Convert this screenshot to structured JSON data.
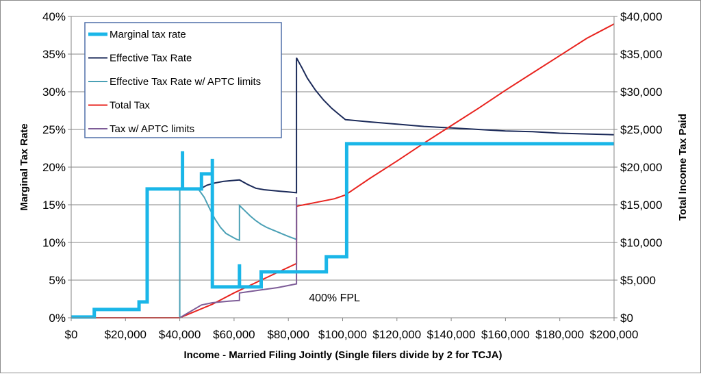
{
  "chart_data": {
    "type": "line",
    "xlabel": "Income - Married Filing Jointly (Single filers divide by 2 for TCJA)",
    "ylabel_left": "Marginal Tax Rate",
    "ylabel_right": "Total Income Tax Paid",
    "xlim": [
      0,
      200000
    ],
    "ylim_left": [
      0,
      0.4
    ],
    "ylim_right": [
      0,
      40000
    ],
    "x_ticks": [
      {
        "value": 0,
        "label": "$0"
      },
      {
        "value": 20000,
        "label": "$20,000"
      },
      {
        "value": 40000,
        "label": "$40,000"
      },
      {
        "value": 60000,
        "label": "$60,000"
      },
      {
        "value": 80000,
        "label": "$80,000"
      },
      {
        "value": 100000,
        "label": "$100,000"
      },
      {
        "value": 120000,
        "label": "$120,000"
      },
      {
        "value": 140000,
        "label": "$140,000"
      },
      {
        "value": 160000,
        "label": "$160,000"
      },
      {
        "value": 180000,
        "label": "$180,000"
      },
      {
        "value": 200000,
        "label": "$200,000"
      }
    ],
    "y_left_ticks": [
      {
        "value": 0,
        "label": "0%"
      },
      {
        "value": 0.05,
        "label": "5%"
      },
      {
        "value": 0.1,
        "label": "10%"
      },
      {
        "value": 0.15,
        "label": "15%"
      },
      {
        "value": 0.2,
        "label": "20%"
      },
      {
        "value": 0.25,
        "label": "25%"
      },
      {
        "value": 0.3,
        "label": "30%"
      },
      {
        "value": 0.35,
        "label": "35%"
      },
      {
        "value": 0.4,
        "label": "40%"
      }
    ],
    "y_right_ticks": [
      {
        "value": 0,
        "label": "$0"
      },
      {
        "value": 5000,
        "label": "$5,000"
      },
      {
        "value": 10000,
        "label": "$10,000"
      },
      {
        "value": 15000,
        "label": "$15,000"
      },
      {
        "value": 20000,
        "label": "$20,000"
      },
      {
        "value": 25000,
        "label": "$25,000"
      },
      {
        "value": 30000,
        "label": "$30,000"
      },
      {
        "value": 35000,
        "label": "$35,000"
      },
      {
        "value": 40000,
        "label": "$40,000"
      }
    ],
    "grid": "horizontal",
    "legend_placement": "top-left",
    "annotations": [
      {
        "text": "400% FPL",
        "x": 97000,
        "y": 0.022
      }
    ],
    "series": [
      {
        "name": "Effective Tax Rate w/ APTC limits",
        "axis": "left",
        "color": "#4aa0b5",
        "width": 2,
        "points": [
          [
            40000,
            0
          ],
          [
            40000,
            0.17
          ],
          [
            47000,
            0.17
          ],
          [
            49000,
            0.16
          ],
          [
            51000,
            0.145
          ],
          [
            53000,
            0.131
          ],
          [
            55000,
            0.12
          ],
          [
            57000,
            0.112
          ],
          [
            59000,
            0.108
          ],
          [
            61000,
            0.104
          ],
          [
            62000,
            0.103
          ],
          [
            62000,
            0.149
          ],
          [
            64000,
            0.142
          ],
          [
            66000,
            0.135
          ],
          [
            68000,
            0.129
          ],
          [
            70000,
            0.124
          ],
          [
            72000,
            0.12
          ],
          [
            74000,
            0.117
          ],
          [
            76000,
            0.114
          ],
          [
            78000,
            0.111
          ],
          [
            80000,
            0.108
          ],
          [
            83000,
            0.104
          ],
          [
            83000,
            0.16
          ]
        ]
      },
      {
        "name": "Effective Tax Rate",
        "axis": "left",
        "color": "#1b2a59",
        "width": 2,
        "points": [
          [
            47000,
            0.17
          ],
          [
            50000,
            0.176
          ],
          [
            53000,
            0.179
          ],
          [
            56000,
            0.181
          ],
          [
            59000,
            0.182
          ],
          [
            62000,
            0.183
          ],
          [
            65000,
            0.177
          ],
          [
            68000,
            0.172
          ],
          [
            71000,
            0.17
          ],
          [
            74000,
            0.169
          ],
          [
            77000,
            0.168
          ],
          [
            80000,
            0.167
          ],
          [
            83000,
            0.166
          ],
          [
            83000,
            0.345
          ],
          [
            85000,
            0.332
          ],
          [
            87000,
            0.318
          ],
          [
            90000,
            0.302
          ],
          [
            93000,
            0.289
          ],
          [
            96000,
            0.278
          ],
          [
            99000,
            0.269
          ],
          [
            101000,
            0.263
          ],
          [
            110000,
            0.26
          ],
          [
            120000,
            0.257
          ],
          [
            130000,
            0.254
          ],
          [
            140000,
            0.252
          ],
          [
            150000,
            0.25
          ],
          [
            160000,
            0.248
          ],
          [
            170000,
            0.247
          ],
          [
            180000,
            0.245
          ],
          [
            190000,
            0.244
          ],
          [
            200000,
            0.243
          ]
        ]
      },
      {
        "name": "Total Tax",
        "axis": "right",
        "color": "#e8231e",
        "width": 2,
        "points": [
          [
            0,
            0
          ],
          [
            40000,
            0
          ],
          [
            52000,
            1800
          ],
          [
            60000,
            3300
          ],
          [
            70000,
            5000
          ],
          [
            83000,
            7200
          ],
          [
            83000,
            14800
          ],
          [
            90000,
            15300
          ],
          [
            97000,
            15800
          ],
          [
            101000,
            16300
          ],
          [
            110000,
            18500
          ],
          [
            120000,
            20800
          ],
          [
            130000,
            23200
          ],
          [
            140000,
            25500
          ],
          [
            150000,
            27800
          ],
          [
            160000,
            30200
          ],
          [
            170000,
            32500
          ],
          [
            180000,
            34800
          ],
          [
            190000,
            37100
          ],
          [
            200000,
            39000
          ]
        ]
      },
      {
        "name": "Tax w/ APTC limits",
        "axis": "right",
        "color": "#7d5c97",
        "width": 2,
        "points": [
          [
            40000,
            0
          ],
          [
            48000,
            1700
          ],
          [
            52000,
            2000
          ],
          [
            58000,
            2200
          ],
          [
            62000,
            2300
          ],
          [
            62000,
            3300
          ],
          [
            70000,
            3700
          ],
          [
            76000,
            4000
          ],
          [
            83000,
            4500
          ],
          [
            83000,
            16000
          ]
        ]
      },
      {
        "name": "Marginal tax rate",
        "axis": "left",
        "color": "#1ab6e8",
        "width": 5,
        "points": [
          [
            0,
            0.001
          ],
          [
            8500,
            0.001
          ],
          [
            8500,
            0.011
          ],
          [
            25000,
            0.011
          ],
          [
            25000,
            0.021
          ],
          [
            28000,
            0.021
          ],
          [
            28000,
            0.171
          ],
          [
            41000,
            0.171
          ],
          [
            41000,
            0.221
          ],
          [
            41000,
            0.171
          ],
          [
            48000,
            0.171
          ],
          [
            48000,
            0.191
          ],
          [
            52000,
            0.191
          ],
          [
            52000,
            0.211
          ],
          [
            52000,
            0.041
          ],
          [
            62000,
            0.041
          ],
          [
            62000,
            0.071
          ],
          [
            62000,
            0.041
          ],
          [
            70000,
            0.041
          ],
          [
            70000,
            0.061
          ],
          [
            94000,
            0.061
          ],
          [
            94000,
            0.081
          ],
          [
            101500,
            0.081
          ],
          [
            101500,
            0.231
          ],
          [
            200000,
            0.231
          ]
        ]
      }
    ],
    "legend_order": [
      "Marginal tax rate",
      "Effective Tax Rate",
      "Effective Tax Rate w/ APTC limits",
      "Total Tax",
      "Tax w/ APTC limits"
    ]
  }
}
